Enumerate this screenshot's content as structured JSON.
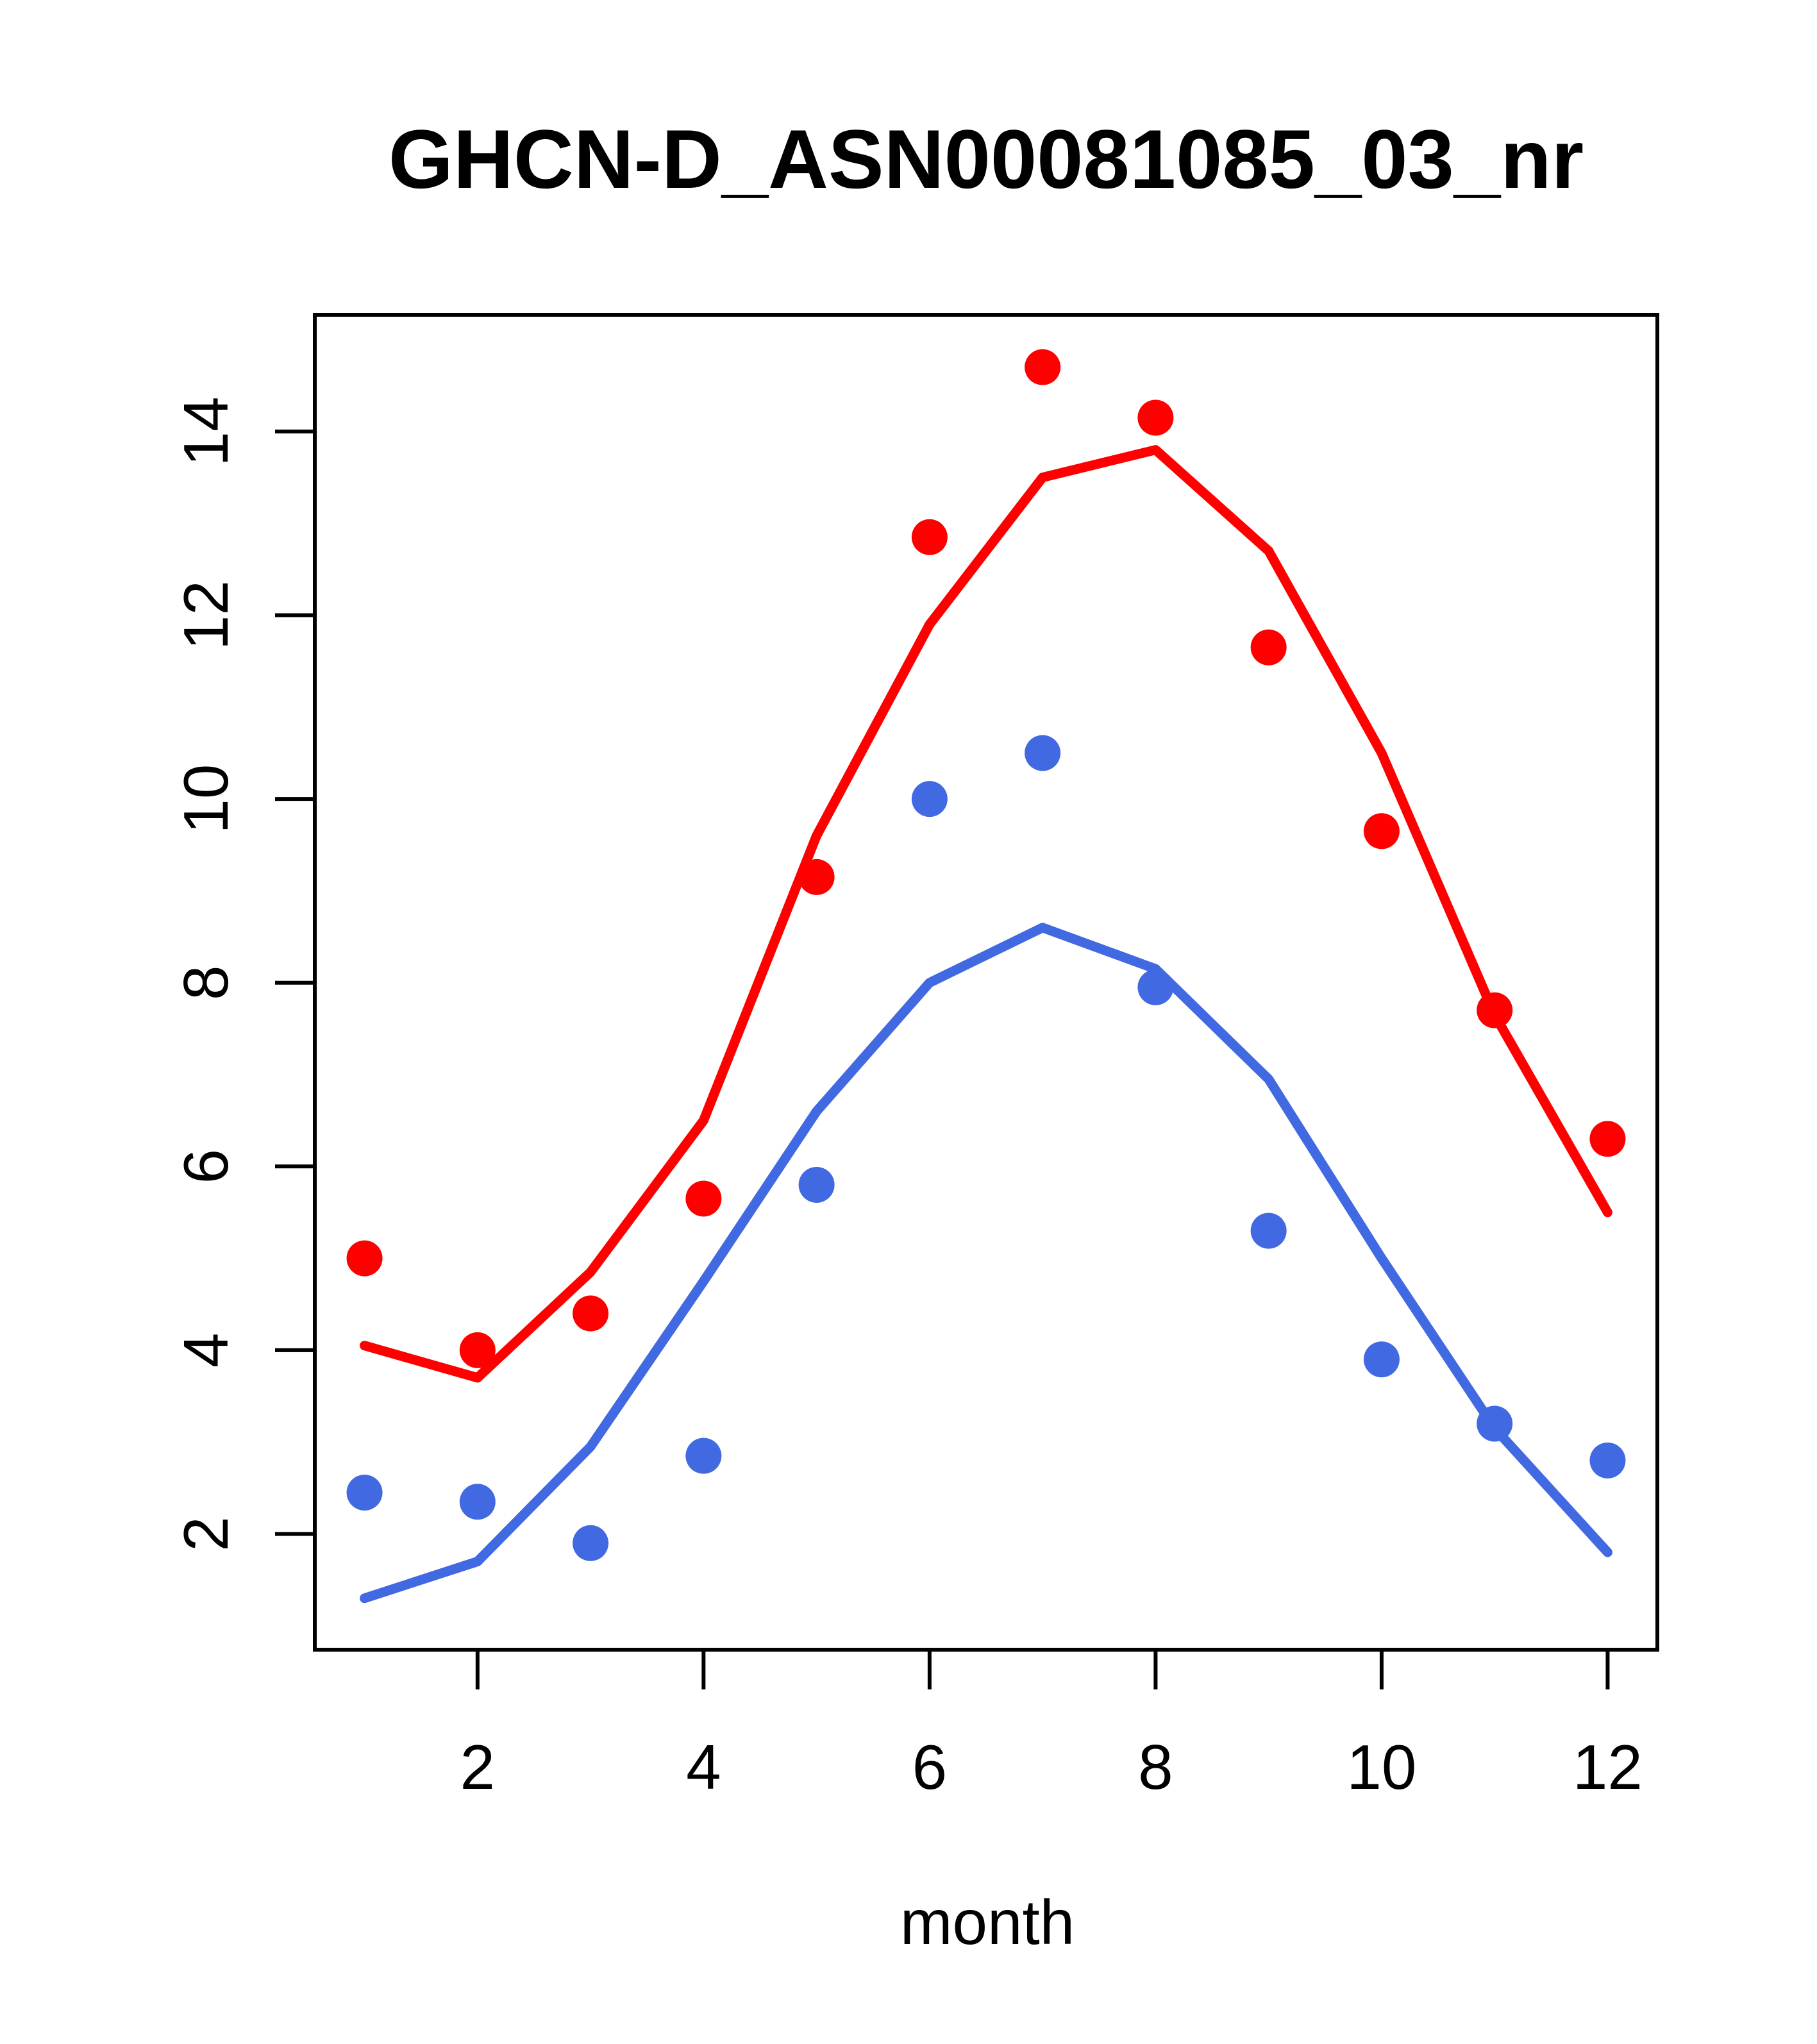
{
  "chart_data": {
    "type": "scatter",
    "title": "GHCN-D_ASN00081085_03_nr",
    "xlabel": "month",
    "ylabel": "",
    "x": [
      1,
      2,
      3,
      4,
      5,
      6,
      7,
      8,
      9,
      10,
      11,
      12
    ],
    "x_ticks": [
      2,
      4,
      6,
      8,
      10,
      12
    ],
    "y_ticks": [
      2,
      4,
      6,
      8,
      10,
      12,
      14
    ],
    "xlim": [
      0.56,
      12.44
    ],
    "ylim": [
      0.74,
      15.27
    ],
    "grid": false,
    "legend_position": "none",
    "colors": {
      "red_series": "#ff0000",
      "blue_series": "#4169e1",
      "axis": "#000000"
    },
    "series": [
      {
        "name": "red-points",
        "kind": "points",
        "color": "#ff0000",
        "values": [
          5.0,
          4.0,
          4.4,
          5.65,
          9.15,
          12.85,
          14.7,
          14.15,
          11.65,
          9.65,
          7.7,
          6.3
        ]
      },
      {
        "name": "blue-points",
        "kind": "points",
        "color": "#4169e1",
        "values": [
          2.45,
          2.35,
          1.9,
          2.85,
          5.8,
          10.0,
          10.5,
          7.95,
          5.3,
          3.9,
          3.2,
          2.8
        ]
      },
      {
        "name": "red-fit-line",
        "kind": "line",
        "color": "#ff0000",
        "values": [
          4.05,
          3.7,
          4.85,
          6.5,
          9.6,
          11.9,
          13.5,
          13.8,
          12.7,
          10.5,
          7.65,
          5.5
        ]
      },
      {
        "name": "blue-fit-line",
        "kind": "line",
        "color": "#4169e1",
        "values": [
          1.3,
          1.7,
          2.95,
          4.75,
          6.6,
          8.0,
          8.6,
          8.15,
          6.95,
          5.0,
          3.15,
          1.8
        ]
      }
    ]
  }
}
